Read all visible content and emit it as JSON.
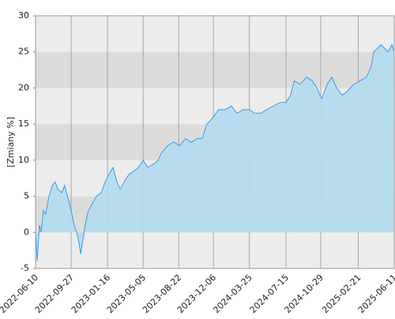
{
  "chart_data": {
    "type": "area",
    "y_label": "[Zmiany %]",
    "x": [
      "2022-06-10",
      "2022-06-15",
      "2022-06-22",
      "2022-06-27",
      "2022-07-04",
      "2022-07-11",
      "2022-07-21",
      "2022-07-31",
      "2022-08-09",
      "2022-08-17",
      "2022-08-29",
      "2022-09-07",
      "2022-09-16",
      "2022-09-27",
      "2022-10-06",
      "2022-10-14",
      "2022-10-21",
      "2022-10-26",
      "2022-11-02",
      "2022-11-09",
      "2022-11-18",
      "2022-12-01",
      "2022-12-13",
      "2022-12-28",
      "2023-01-09",
      "2023-01-20",
      "2023-02-02",
      "2023-02-14",
      "2023-02-24",
      "2023-03-08",
      "2023-03-22",
      "2023-04-07",
      "2023-04-21",
      "2023-05-05",
      "2023-05-19",
      "2023-06-07",
      "2023-06-20",
      "2023-06-30",
      "2023-07-19",
      "2023-08-07",
      "2023-08-25",
      "2023-09-12",
      "2023-09-29",
      "2023-10-18",
      "2023-11-02",
      "2023-11-16",
      "2023-12-06",
      "2023-12-22",
      "2024-01-11",
      "2024-01-30",
      "2024-02-16",
      "2024-03-06",
      "2024-03-26",
      "2024-04-09",
      "2024-04-29",
      "2024-05-17",
      "2024-06-06",
      "2024-06-28",
      "2024-07-15",
      "2024-07-29",
      "2024-08-09",
      "2024-08-27",
      "2024-09-16",
      "2024-10-03",
      "2024-10-18",
      "2024-11-01",
      "2024-11-18",
      "2024-12-02",
      "2024-12-17",
      "2025-01-03",
      "2025-01-17",
      "2025-02-07",
      "2025-02-27",
      "2025-03-18",
      "2025-04-02",
      "2025-04-09",
      "2025-04-21",
      "2025-05-01",
      "2025-05-13",
      "2025-05-23",
      "2025-06-04",
      "2025-06-11"
    ],
    "values": [
      0,
      -4,
      1,
      0,
      3,
      2.5,
      5,
      6.5,
      7,
      6,
      5.5,
      6.5,
      5,
      3,
      1,
      0,
      -1.5,
      -3,
      -1,
      1,
      3,
      4,
      5,
      5.5,
      7,
      8,
      9,
      7,
      6,
      7,
      8,
      8.5,
      9,
      10,
      9,
      9.5,
      10,
      11,
      12,
      12.5,
      12,
      13,
      12.5,
      13,
      13,
      15,
      16,
      17,
      17,
      17.5,
      16.5,
      17,
      17,
      16.5,
      16.5,
      17,
      17.5,
      18,
      18,
      19,
      21,
      20.5,
      21.5,
      21,
      20,
      18.5,
      20.5,
      21.5,
      20,
      19,
      19.5,
      20.5,
      21,
      21.5,
      23,
      25,
      25.5,
      26,
      25.5,
      25,
      26,
      25
    ],
    "color": "#3d9be9",
    "fill_color": "#b3dcef",
    "xlim": [
      "2022-06-10",
      "2025-06-11"
    ],
    "xticks": [
      "2022-06-10",
      "2022-09-27",
      "2023-01-16",
      "2023-05-05",
      "2023-08-22",
      "2023-12-06",
      "2024-03-25",
      "2024-07-15",
      "2024-10-29",
      "2025-02-21",
      "2025-06-11"
    ],
    "ylim": [
      -5,
      30
    ],
    "yticks": [
      -5,
      0,
      5,
      10,
      15,
      20,
      25,
      30
    ],
    "grid": true
  }
}
